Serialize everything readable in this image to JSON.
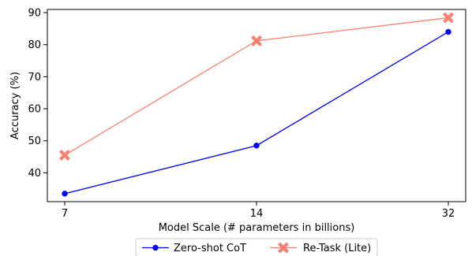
{
  "chart_data": {
    "type": "line",
    "title": "",
    "xlabel": "Model Scale (# parameters in billions)",
    "ylabel": "Accuracy (%)",
    "categories": [
      "7",
      "14",
      "32"
    ],
    "ylim": [
      31,
      91
    ],
    "yticks": [
      40,
      50,
      60,
      70,
      80,
      90
    ],
    "grid": false,
    "legend_position": "bottom-center",
    "series": [
      {
        "name": "Zero-shot CoT",
        "values": [
          33.5,
          48.5,
          84.0
        ],
        "color": "#0000ff",
        "marker": "circle"
      },
      {
        "name": "Re-Task (Lite)",
        "values": [
          45.5,
          81.2,
          88.4
        ],
        "color": "#fa8072",
        "marker": "x"
      }
    ]
  }
}
